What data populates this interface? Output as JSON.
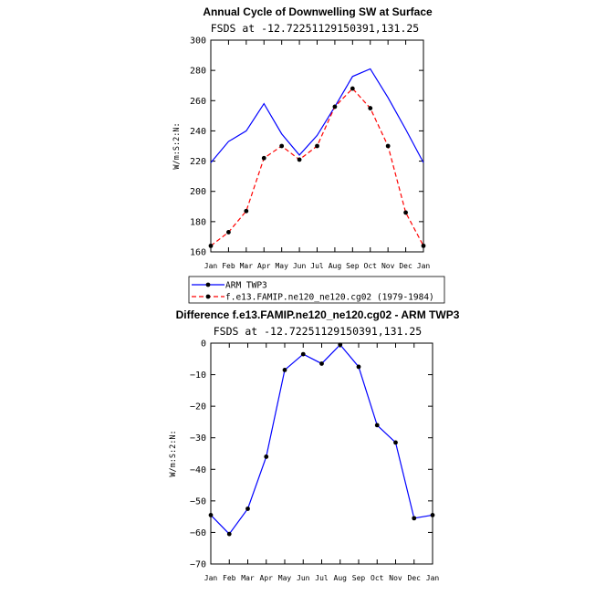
{
  "chart_data": [
    {
      "type": "line",
      "title": "Annual Cycle of Downwelling SW at Surface",
      "subtitle": "FSDS at -12.72251129150391,131.25",
      "xlabel": "",
      "ylabel": "W/m:S:2:N:",
      "categories": [
        "Jan",
        "Feb",
        "Mar",
        "Apr",
        "May",
        "Jun",
        "Jul",
        "Aug",
        "Sep",
        "Oct",
        "Nov",
        "Dec",
        "Jan"
      ],
      "ylim": [
        160,
        300
      ],
      "yticks": [
        160,
        180,
        200,
        220,
        240,
        260,
        280,
        300
      ],
      "ytick_labels": [
        "160",
        "180",
        "200",
        "220",
        "240",
        "260",
        "280",
        "300"
      ],
      "series": [
        {
          "name": "ARM TWP3",
          "color": "#0000ff",
          "dash": "solid",
          "marker": "none",
          "values": [
            219,
            233,
            240,
            258,
            238,
            224,
            237,
            256,
            276,
            281,
            262,
            241,
            219
          ]
        },
        {
          "name": "f.e13.FAMIP.ne120_ne120.cg02 (1979-1984)",
          "color": "#ff0000",
          "dash": "dashed",
          "marker": "dot",
          "values": [
            164,
            173,
            187,
            222,
            230,
            221,
            230,
            256,
            268,
            255,
            230,
            186,
            164
          ]
        }
      ],
      "legend": {
        "position": "bottom-left",
        "entries": [
          "ARM TWP3",
          "f.e13.FAMIP.ne120_ne120.cg02 (1979-1984)"
        ]
      }
    },
    {
      "type": "line",
      "title": "Difference f.e13.FAMIP.ne120_ne120.cg02 - ARM TWP3",
      "subtitle": "FSDS at -12.72251129150391,131.25",
      "xlabel": "",
      "ylabel": "W/m:S:2:N:",
      "categories": [
        "Jan",
        "Feb",
        "Mar",
        "Apr",
        "May",
        "Jun",
        "Jul",
        "Aug",
        "Sep",
        "Oct",
        "Nov",
        "Dec",
        "Jan"
      ],
      "ylim": [
        -70,
        0
      ],
      "yticks": [
        -70,
        -60,
        -50,
        -40,
        -30,
        -20,
        -10,
        0
      ],
      "ytick_labels": [
        "−70",
        "−60",
        "−50",
        "−40",
        "−30",
        "−20",
        "−10",
        "0"
      ],
      "series": [
        {
          "name": "Difference",
          "color": "#0000ff",
          "dash": "solid",
          "marker": "dot",
          "values": [
            -54.5,
            -60.5,
            -52.5,
            -36,
            -8.5,
            -3.5,
            -6.5,
            -0.5,
            -7.5,
            -26,
            -31.5,
            -55.5,
            -54.5
          ]
        }
      ]
    }
  ]
}
